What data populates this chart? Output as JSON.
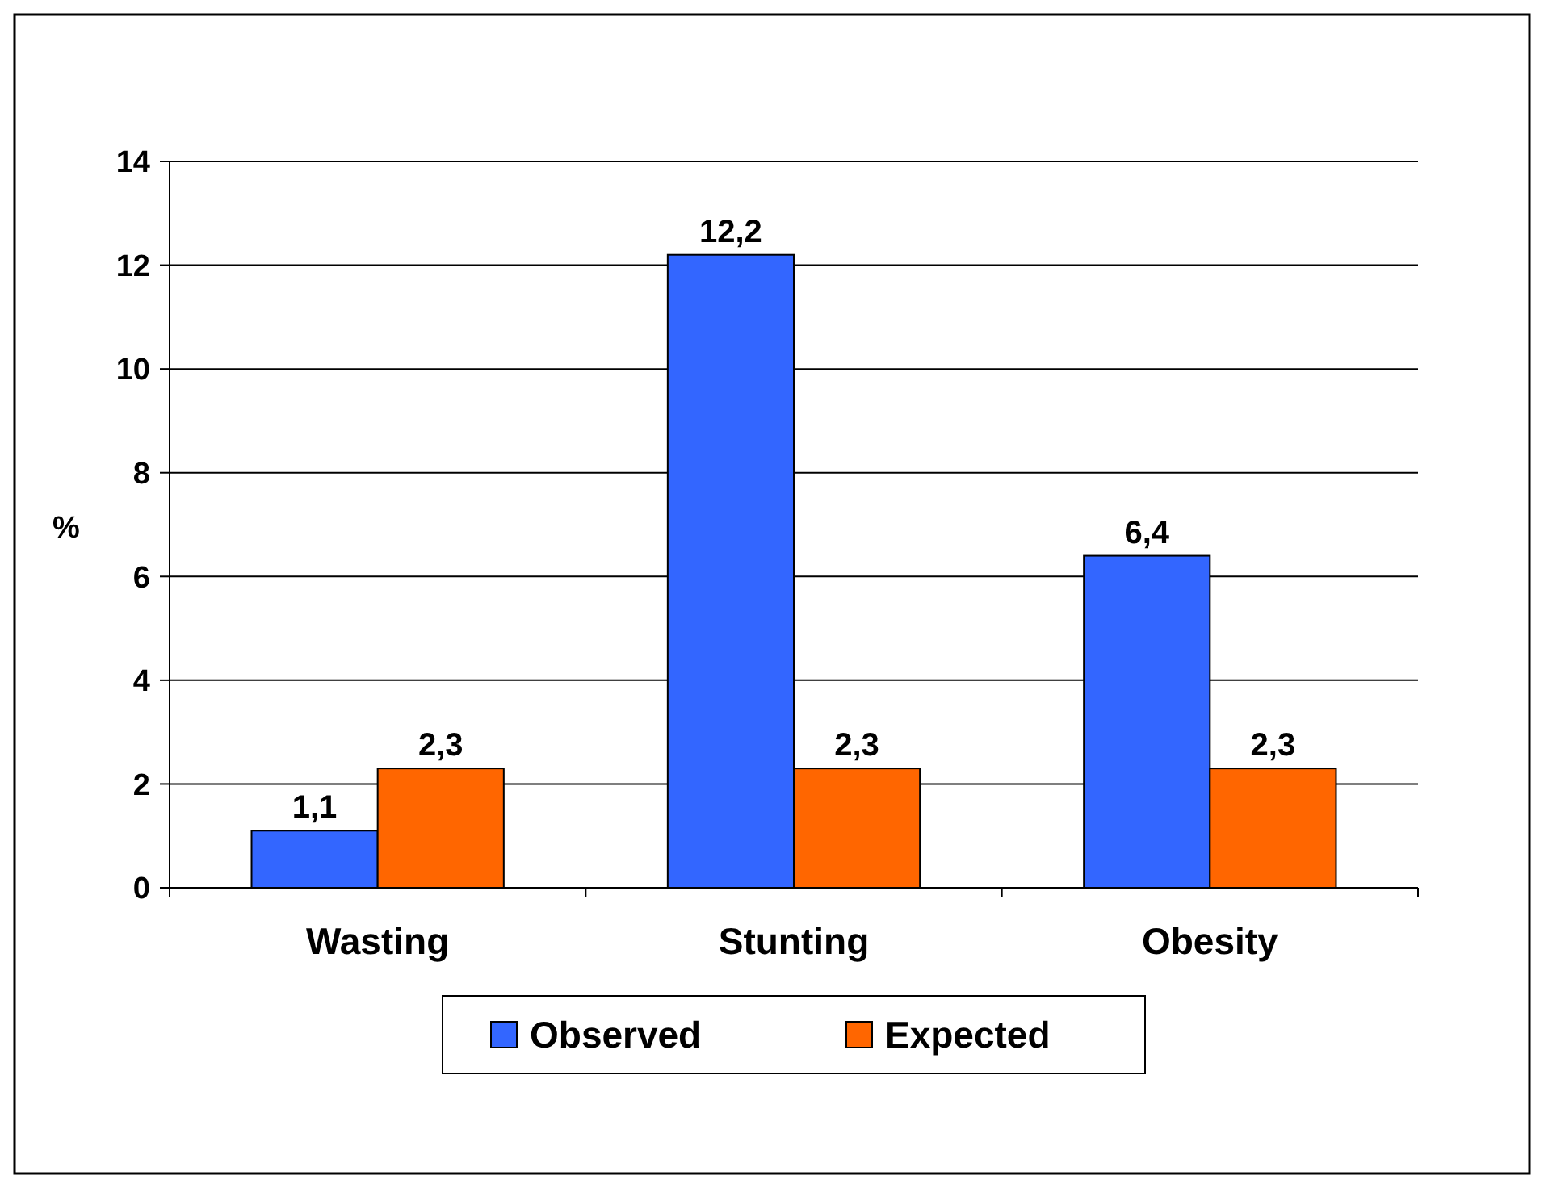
{
  "chart_data": {
    "type": "bar",
    "ylabel": "%",
    "categories": [
      "Wasting",
      "Stunting",
      "Obesity"
    ],
    "series": [
      {
        "name": "Observed",
        "color": "#3366ff",
        "values": [
          1.1,
          12.2,
          6.4
        ],
        "value_labels": [
          "1,1",
          "12,2",
          "6,4"
        ]
      },
      {
        "name": "Expected",
        "color": "#ff6600",
        "values": [
          2.3,
          2.3,
          2.3
        ],
        "value_labels": [
          "2,3",
          "2,3",
          "2,3"
        ]
      }
    ],
    "ylim": [
      0,
      14
    ],
    "yticks": [
      0,
      2,
      4,
      6,
      8,
      10,
      12,
      14
    ],
    "grid": "y",
    "legend": "bottom"
  }
}
